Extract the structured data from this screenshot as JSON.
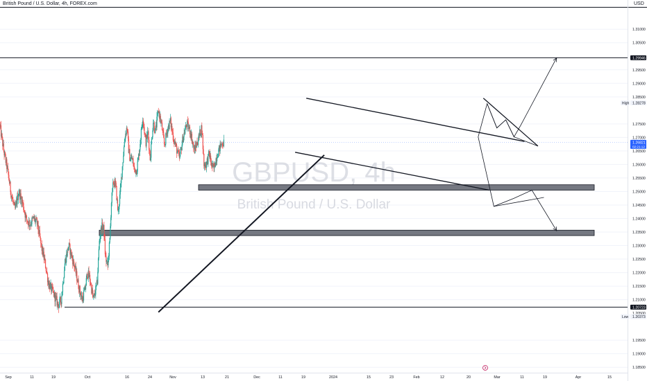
{
  "header": {
    "symbol_desc": "British Pound / U.S. Dollar, 4h, FOREX.com",
    "currency": "USD"
  },
  "watermark": {
    "ticker": "GBPUSD, 4h",
    "description": "British Pound / U.S. Dollar"
  },
  "colors": {
    "up": "#26a69a",
    "down": "#ef5350",
    "zone_fill": "#5d606b",
    "drawing": "#131722",
    "current_price": "#2962ff",
    "grid": "#f0f3fa"
  },
  "chart_data": {
    "type": "candlestick",
    "timeframe": "4h",
    "symbol": "GBPUSD",
    "ylim": [
      1.183,
      1.318
    ],
    "x_ticks": [
      "Sep",
      "11",
      "19",
      "Oct",
      "16",
      "24",
      "Nov",
      "13",
      "21",
      "Dec",
      "11",
      "19",
      "2024",
      "15",
      "23",
      "Feb",
      "12",
      "20",
      "Mar",
      "11",
      "19",
      "Apr",
      "15"
    ],
    "y_ticks": [
      "1.31000",
      "1.30500",
      "1.29500",
      "1.29000",
      "1.28500",
      "1.27500",
      "1.27000",
      "1.26500",
      "1.26000",
      "1.25500",
      "1.25000",
      "1.24500",
      "1.24000",
      "1.23500",
      "1.23000",
      "1.22500",
      "1.22000",
      "1.21500",
      "1.21000",
      "1.19500",
      "1.19000",
      "1.18500"
    ],
    "price_labels": [
      {
        "label": "1.29946",
        "value": 1.29946,
        "style": "dark"
      },
      {
        "label": "1.28278",
        "value": 1.28278,
        "style": "high",
        "tag": "High"
      },
      {
        "label": "1.26821",
        "value": 1.26821,
        "style": "current",
        "sub": "02:21:12"
      },
      {
        "label": "1.20723",
        "value": 1.20723,
        "style": "dark"
      },
      {
        "label": "1.20500",
        "value": 1.205,
        "style": "plain"
      },
      {
        "label": "1.20373",
        "value": 1.20373,
        "style": "low",
        "tag": "Low"
      }
    ],
    "horizontal_lines": [
      1.29946,
      1.20723
    ],
    "zones": [
      {
        "from": 1.2505,
        "to": 1.2525
      },
      {
        "from": 1.2337,
        "to": 1.2357
      }
    ],
    "candle_path": [
      [
        0,
        1.274
      ],
      [
        5,
        1.265
      ],
      [
        10,
        1.258
      ],
      [
        15,
        1.249
      ],
      [
        20,
        1.243
      ],
      [
        25,
        1.25
      ],
      [
        30,
        1.246
      ],
      [
        35,
        1.24
      ],
      [
        40,
        1.238
      ],
      [
        45,
        1.24
      ],
      [
        50,
        1.238
      ],
      [
        55,
        1.23
      ],
      [
        60,
        1.224
      ],
      [
        65,
        1.216
      ],
      [
        72,
        1.212
      ],
      [
        78,
        1.208
      ],
      [
        82,
        1.21
      ],
      [
        87,
        1.224
      ],
      [
        92,
        1.23
      ],
      [
        96,
        1.226
      ],
      [
        100,
        1.222
      ],
      [
        106,
        1.214
      ],
      [
        110,
        1.21
      ],
      [
        114,
        1.214
      ],
      [
        117,
        1.22
      ],
      [
        120,
        1.218
      ],
      [
        125,
        1.21
      ],
      [
        130,
        1.216
      ],
      [
        133,
        1.232
      ],
      [
        136,
        1.237
      ],
      [
        139,
        1.236
      ],
      [
        141,
        1.226
      ],
      [
        144,
        1.222
      ],
      [
        147,
        1.232
      ],
      [
        149,
        1.246
      ],
      [
        152,
        1.254
      ],
      [
        155,
        1.252
      ],
      [
        158,
        1.242
      ],
      [
        161,
        1.25
      ],
      [
        164,
        1.26
      ],
      [
        167,
        1.27
      ],
      [
        170,
        1.274
      ],
      [
        172,
        1.266
      ],
      [
        174,
        1.262
      ],
      [
        177,
        1.262
      ],
      [
        180,
        1.258
      ],
      [
        183,
        1.258
      ],
      [
        186,
        1.264
      ],
      [
        189,
        1.272
      ],
      [
        191,
        1.278
      ],
      [
        193,
        1.273
      ],
      [
        195,
        1.268
      ],
      [
        198,
        1.272
      ],
      [
        201,
        1.262
      ],
      [
        205,
        1.276
      ],
      [
        208,
        1.272
      ],
      [
        212,
        1.28
      ],
      [
        216,
        1.275
      ],
      [
        220,
        1.267
      ],
      [
        224,
        1.273
      ],
      [
        228,
        1.276
      ],
      [
        232,
        1.27
      ],
      [
        236,
        1.266
      ],
      [
        240,
        1.262
      ],
      [
        245,
        1.27
      ],
      [
        250,
        1.275
      ],
      [
        255,
        1.272
      ],
      [
        260,
        1.265
      ],
      [
        265,
        1.269
      ],
      [
        270,
        1.274
      ],
      [
        273,
        1.26
      ],
      [
        276,
        1.26
      ],
      [
        280,
        1.264
      ],
      [
        283,
        1.26
      ],
      [
        286,
        1.258
      ],
      [
        289,
        1.262
      ],
      [
        291,
        1.264
      ],
      [
        294,
        1.266
      ],
      [
        297,
        1.268
      ],
      [
        300,
        1.268
      ]
    ],
    "trendlines": [
      {
        "name": "channel-upper",
        "points": [
          [
            410,
            1.2845
          ],
          [
            702,
            1.2685
          ]
        ]
      },
      {
        "name": "channel-lower",
        "points": [
          [
            395,
            1.2645
          ],
          [
            655,
            1.2505
          ]
        ]
      },
      {
        "name": "uptrend-support",
        "points": [
          [
            212,
            1.2054
          ],
          [
            434,
            1.2635
          ]
        ]
      }
    ],
    "projections": [
      {
        "name": "bullish-triangle-top",
        "points": [
          [
            647,
            1.2845
          ],
          [
            720,
            1.2668
          ]
        ]
      },
      {
        "name": "bullish-triangle-zigzag",
        "points": [
          [
            652,
            1.2825
          ],
          [
            665,
            1.2735
          ],
          [
            677,
            1.2765
          ],
          [
            688,
            1.2702
          ],
          [
            720,
            1.2668
          ]
        ]
      },
      {
        "name": "bullish-breakout",
        "points": [
          [
            640,
            1.2702
          ],
          [
            652,
            1.2825
          ],
          [
            665,
            1.2735
          ],
          [
            677,
            1.2765
          ],
          [
            688,
            1.2702
          ],
          [
            697,
            1.2745
          ],
          [
            745,
            1.2994
          ]
        ],
        "arrow": true
      },
      {
        "name": "bearish-triangle-lower",
        "points": [
          [
            661,
            1.2445
          ],
          [
            728,
            1.2478
          ]
        ]
      },
      {
        "name": "bearish-zigzag",
        "points": [
          [
            640,
            1.2702
          ],
          [
            661,
            1.2445
          ],
          [
            688,
            1.2475
          ],
          [
            712,
            1.2505
          ],
          [
            745,
            1.2355
          ]
        ],
        "arrow": true
      }
    ],
    "x_domain": [
      0,
      840
    ]
  }
}
